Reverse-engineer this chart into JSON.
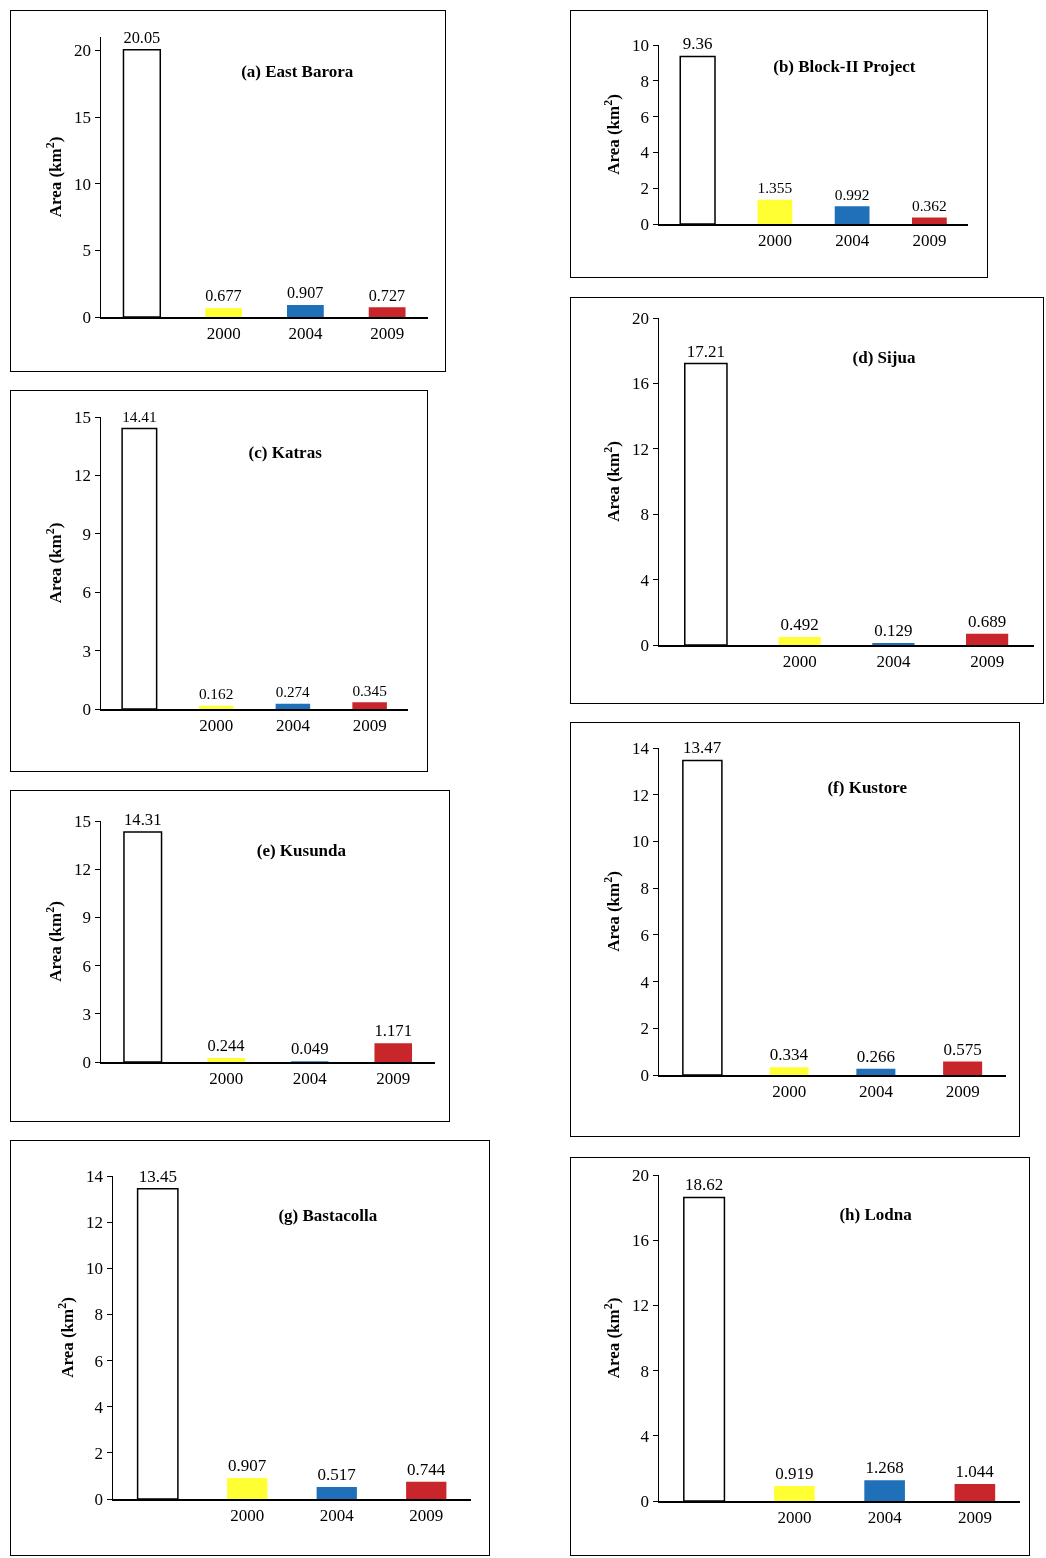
{
  "chart_data": [
    {
      "type": "bar",
      "title": "(a) East Barora",
      "ylabel": "Area (km$^{2}$)",
      "categories": [
        null,
        "2000",
        "2004",
        "2009"
      ],
      "values": [
        20.05,
        0.677,
        0.907,
        0.727
      ],
      "colors": [
        "#ffffff",
        "#ffff33",
        "#1f70b8",
        "#c8262b"
      ],
      "ylim": [
        0,
        21
      ],
      "yticks": [
        0,
        5,
        10,
        15,
        20
      ],
      "data_labels": true,
      "grid": false,
      "legend": false
    },
    {
      "type": "bar",
      "title": "(b) Block-II Project",
      "ylabel": "Area (km$^{2}$)",
      "categories": [
        null,
        "2000",
        "2004",
        "2009"
      ],
      "values": [
        9.36,
        1.355,
        0.992,
        0.362
      ],
      "colors": [
        "#ffffff",
        "#ffff33",
        "#1f70b8",
        "#c8262b"
      ],
      "ylim": [
        0,
        10
      ],
      "yticks": [
        0,
        2,
        4,
        6,
        8,
        10
      ],
      "data_labels": true,
      "grid": false,
      "legend": false
    },
    {
      "type": "bar",
      "title": "(c) Katras",
      "ylabel": "Area (km$^{2}$)",
      "categories": [
        null,
        "2000",
        "2004",
        "2009"
      ],
      "values": [
        14.41,
        0.162,
        0.274,
        0.345
      ],
      "colors": [
        "#ffffff",
        "#ffff33",
        "#1f70b8",
        "#c8262b"
      ],
      "ylim": [
        0,
        15
      ],
      "yticks": [
        0,
        3,
        6,
        9,
        12,
        15
      ],
      "data_labels": true,
      "grid": false,
      "legend": false
    },
    {
      "type": "bar",
      "title": "(d) Sijua",
      "ylabel": "Area (km$^{2}$)",
      "categories": [
        null,
        "2000",
        "2004",
        "2009"
      ],
      "values": [
        17.21,
        0.492,
        0.129,
        0.689
      ],
      "colors": [
        "#ffffff",
        "#ffff33",
        "#1f70b8",
        "#c8262b"
      ],
      "ylim": [
        0,
        20
      ],
      "yticks": [
        0,
        4,
        8,
        12,
        16,
        20
      ],
      "data_labels": true,
      "grid": false,
      "legend": false
    },
    {
      "type": "bar",
      "title": "(e) Kusunda",
      "ylabel": "Area (km$^{2}$)",
      "categories": [
        null,
        "2000",
        "2004",
        "2009"
      ],
      "values": [
        14.31,
        0.244,
        0.049,
        1.171
      ],
      "colors": [
        "#ffffff",
        "#ffff33",
        "#1f70b8",
        "#c8262b"
      ],
      "ylim": [
        0,
        15
      ],
      "yticks": [
        0,
        3,
        6,
        9,
        12,
        15
      ],
      "data_labels": true,
      "grid": false,
      "legend": false
    },
    {
      "type": "bar",
      "title": "(f) Kustore",
      "ylabel": "Area (km$^{2}$)",
      "categories": [
        null,
        "2000",
        "2004",
        "2009"
      ],
      "values": [
        13.47,
        0.334,
        0.266,
        0.575
      ],
      "colors": [
        "#ffffff",
        "#ffff33",
        "#1f70b8",
        "#c8262b"
      ],
      "ylim": [
        0,
        14
      ],
      "yticks": [
        0,
        2,
        4,
        6,
        8,
        10,
        12,
        14
      ],
      "data_labels": true,
      "grid": false,
      "legend": false
    },
    {
      "type": "bar",
      "title": "(g) Bastacolla",
      "ylabel": "Area (km$^{2}$)",
      "categories": [
        null,
        "2000",
        "2004",
        "2009"
      ],
      "values": [
        13.45,
        0.907,
        0.517,
        0.744
      ],
      "colors": [
        "#ffffff",
        "#ffff33",
        "#1f70b8",
        "#c8262b"
      ],
      "ylim": [
        0,
        14
      ],
      "yticks": [
        0,
        2,
        4,
        6,
        8,
        10,
        12,
        14
      ],
      "data_labels": true,
      "grid": false,
      "legend": false
    },
    {
      "type": "bar",
      "title": "(h) Lodna",
      "ylabel": "Area (km$^{2}$)",
      "categories": [
        null,
        "2000",
        "2004",
        "2009"
      ],
      "values": [
        18.62,
        0.919,
        1.268,
        1.044
      ],
      "colors": [
        "#ffffff",
        "#ffff33",
        "#1f70b8",
        "#c8262b"
      ],
      "ylim": [
        0,
        20
      ],
      "yticks": [
        0,
        4,
        8,
        12,
        16,
        20
      ],
      "data_labels": true,
      "grid": false,
      "legend": false
    }
  ]
}
